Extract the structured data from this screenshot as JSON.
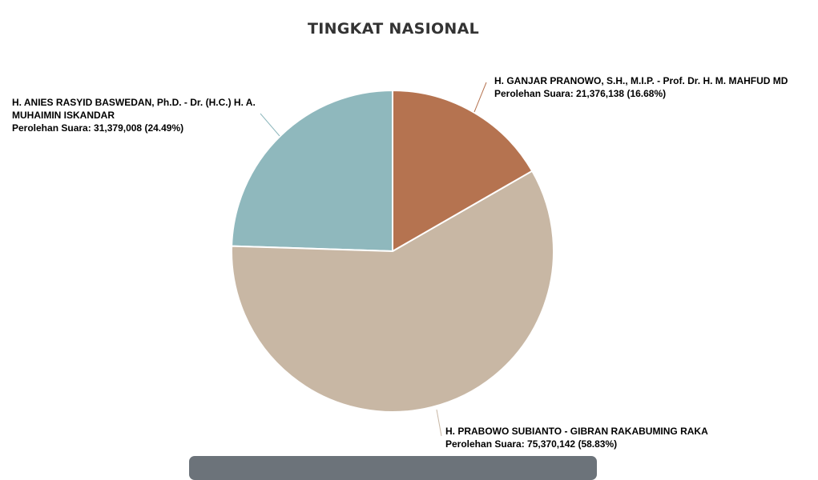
{
  "chart_data": {
    "type": "pie",
    "title": "TINGKAT NASIONAL",
    "vote_prefix": "Perolehan Suara:",
    "slices": [
      {
        "name": "H. GANJAR PRANOWO, S.H., M.I.P. - Prof. Dr. H. M. MAHFUD MD",
        "value": 21376138,
        "value_label": "21,376,138",
        "percent": 16.68,
        "percent_label": "(16.68%)",
        "color": "#b57350"
      },
      {
        "name": "H. PRABOWO SUBIANTO - GIBRAN RAKABUMING RAKA",
        "value": 75370142,
        "value_label": "75,370,142",
        "percent": 58.83,
        "percent_label": "(58.83%)",
        "color": "#c8b7a4"
      },
      {
        "name": "H. ANIES RASYID BASWEDAN, Ph.D. - Dr. (H.C.) H. A. MUHAIMIN ISKANDAR",
        "value": 31379008,
        "value_label": "31,379,008",
        "percent": 24.49,
        "percent_label": "(24.49%)",
        "color": "#8fb8bd"
      }
    ]
  }
}
